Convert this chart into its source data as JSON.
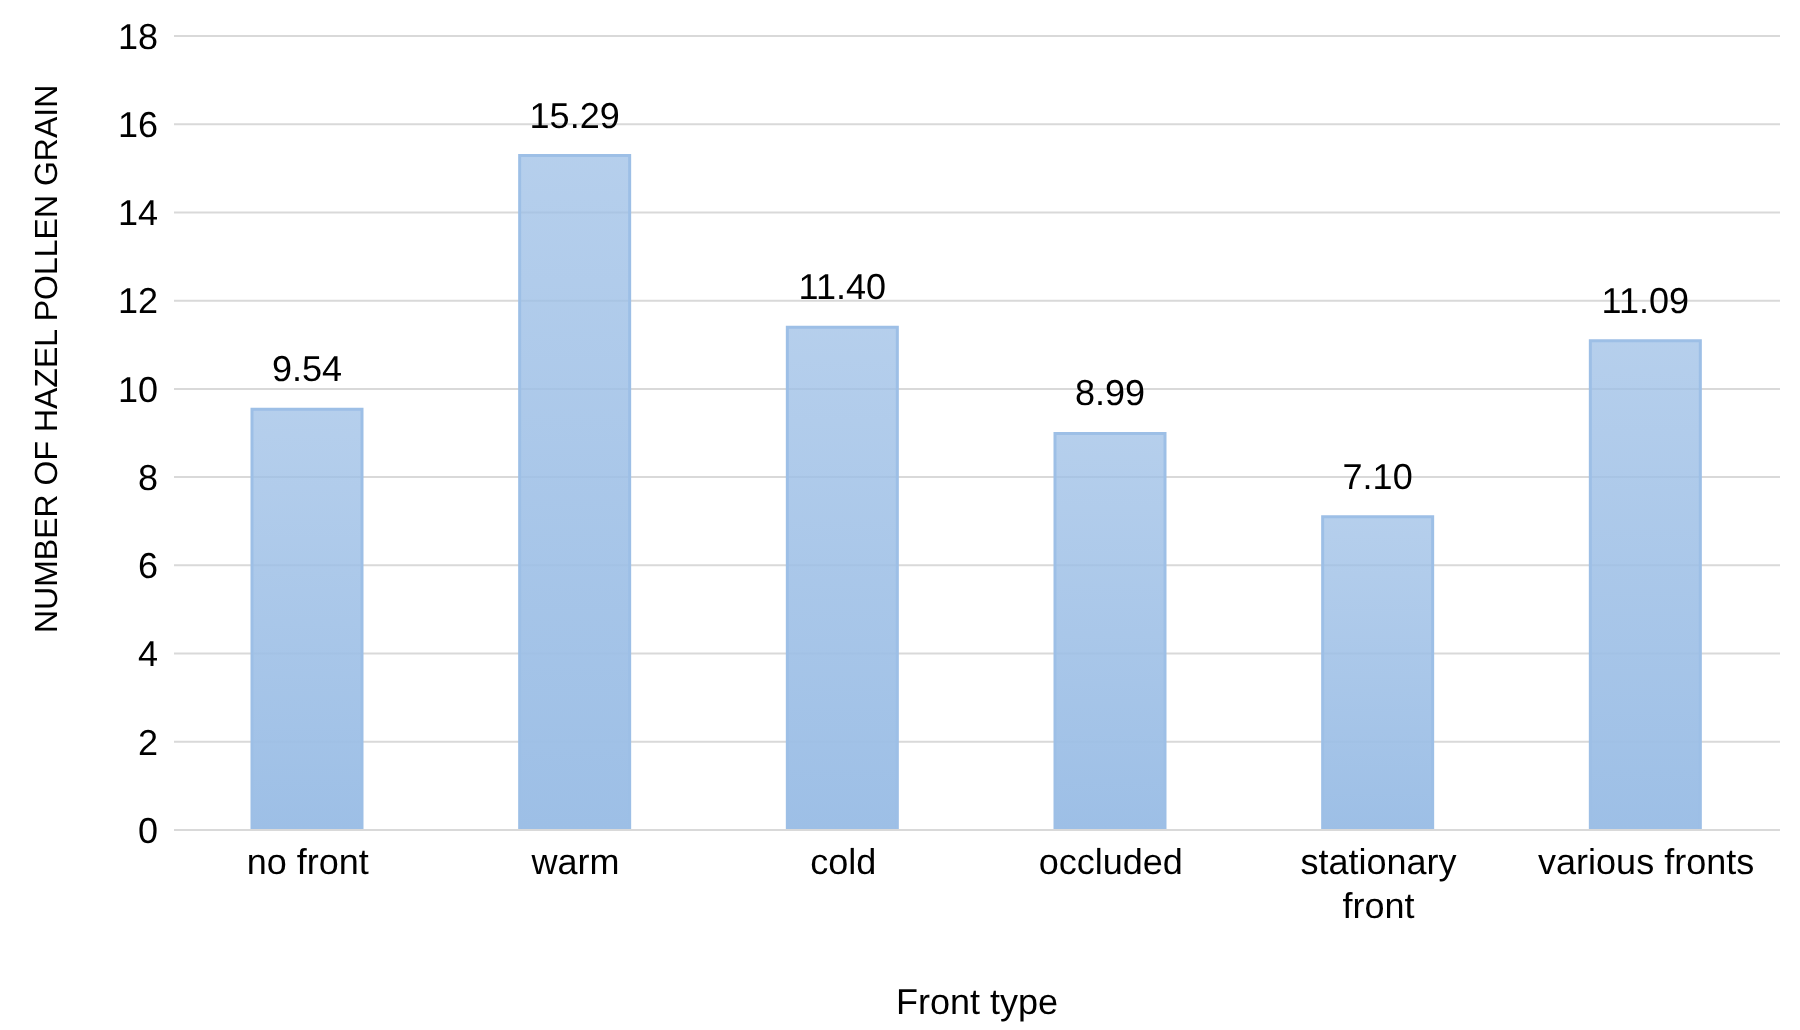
{
  "chart_data": {
    "type": "bar",
    "xlabel": "Front type",
    "ylabel": "NUMBER  OF HAZEL POLLEN GRAIN",
    "categories": [
      "no front",
      "warm",
      "cold",
      "occluded",
      "stationary front",
      "various fronts"
    ],
    "values": [
      9.54,
      15.29,
      11.4,
      8.99,
      7.1,
      11.09
    ],
    "value_labels": [
      "9.54",
      "15.29",
      "11.40",
      "8.99",
      "7.10",
      "11.09"
    ],
    "color": "#9dbfe6",
    "ylim": [
      0,
      18
    ],
    "yticks": [
      0,
      2,
      4,
      6,
      8,
      10,
      12,
      14,
      16,
      18
    ],
    "grid": "y"
  }
}
